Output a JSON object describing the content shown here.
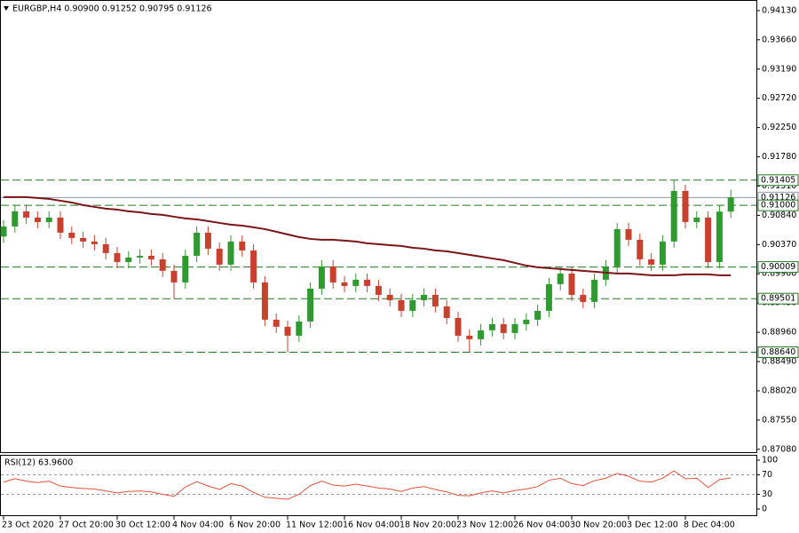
{
  "chart_data": [
    {
      "type": "candlestick",
      "title": "EURGBP,H4  0.90900 0.91252 0.90795 0.91126",
      "categories": [
        "23 Oct 2020",
        null,
        null,
        null,
        null,
        "27 Oct 20:00",
        null,
        null,
        null,
        null,
        "30 Oct 12:00",
        null,
        null,
        null,
        null,
        "4 Nov 04:00",
        null,
        null,
        null,
        null,
        "6 Nov 20:00",
        null,
        null,
        null,
        null,
        "11 Nov 12:00",
        null,
        null,
        null,
        null,
        "16 Nov 04:00",
        null,
        null,
        null,
        null,
        "18 Nov 20:00",
        null,
        null,
        null,
        null,
        "23 Nov 12:00",
        null,
        null,
        null,
        null,
        "26 Nov 04:00",
        null,
        null,
        null,
        null,
        "30 Nov 20:00",
        null,
        null,
        null,
        null,
        "3 Dec 12:00",
        null,
        null,
        null,
        null,
        "8 Dec 04:00",
        null,
        null,
        null,
        null
      ],
      "open": [
        0.905,
        0.90661,
        0.90904,
        0.90804,
        0.90732,
        0.90804,
        0.90561,
        0.90476,
        0.90419,
        0.90376,
        0.90233,
        0.9009,
        0.90162,
        0.9019,
        0.90133,
        0.89948,
        0.89762,
        0.9019,
        0.90561,
        0.90304,
        0.90048,
        0.90419,
        0.90276,
        0.89762,
        0.89163,
        0.89049,
        0.88906,
        0.89134,
        0.89662,
        0.90019,
        0.89762,
        0.89705,
        0.89805,
        0.89705,
        0.89562,
        0.89477,
        0.89305,
        0.89477,
        0.89562,
        0.89377,
        0.89191,
        0.88906,
        0.88849,
        0.88992,
        0.89091,
        0.88949,
        0.89091,
        0.89163,
        0.89305,
        0.89734,
        0.89905,
        0.89562,
        0.89448,
        0.89805,
        0.90019,
        0.90618,
        0.90447,
        0.90133,
        0.90048,
        0.90419,
        0.91232,
        0.90732,
        0.90804,
        0.9009,
        0.909
      ],
      "high": [
        0.90761,
        0.91004,
        0.91004,
        0.90904,
        0.90904,
        0.90904,
        0.90661,
        0.90576,
        0.90519,
        0.90476,
        0.90333,
        0.90262,
        0.9029,
        0.9029,
        0.90233,
        0.90048,
        0.9029,
        0.90661,
        0.90661,
        0.90404,
        0.90519,
        0.90519,
        0.90376,
        0.89862,
        0.89263,
        0.89149,
        0.89234,
        0.89762,
        0.90119,
        0.90119,
        0.89862,
        0.89905,
        0.89905,
        0.89805,
        0.89662,
        0.89577,
        0.89577,
        0.89662,
        0.89662,
        0.89477,
        0.89291,
        0.89006,
        0.89092,
        0.89191,
        0.89191,
        0.89191,
        0.89263,
        0.89405,
        0.89834,
        0.90005,
        0.90005,
        0.89662,
        0.89905,
        0.90119,
        0.90718,
        0.90718,
        0.90547,
        0.90233,
        0.90519,
        0.91405,
        0.91332,
        0.90904,
        0.90904,
        0.91,
        0.91252
      ],
      "low": [
        0.904,
        0.90561,
        0.90704,
        0.90632,
        0.90632,
        0.90461,
        0.90376,
        0.90319,
        0.90276,
        0.90133,
        0.8999,
        0.8999,
        0.90062,
        0.90033,
        0.89848,
        0.895,
        0.89662,
        0.9009,
        0.90204,
        0.89948,
        0.89948,
        0.90176,
        0.89662,
        0.89063,
        0.88949,
        0.8864,
        0.88806,
        0.89034,
        0.89562,
        0.89662,
        0.89605,
        0.89605,
        0.89605,
        0.89462,
        0.89377,
        0.89205,
        0.89205,
        0.89377,
        0.89277,
        0.89091,
        0.88806,
        0.8864,
        0.88749,
        0.88892,
        0.88849,
        0.88849,
        0.88991,
        0.89063,
        0.89205,
        0.89634,
        0.89462,
        0.89348,
        0.89348,
        0.89705,
        0.89919,
        0.90347,
        0.90033,
        0.89948,
        0.89948,
        0.90319,
        0.90632,
        0.90632,
        0.8999,
        0.8999,
        0.90795
      ],
      "close": [
        0.90661,
        0.90904,
        0.90804,
        0.90732,
        0.90804,
        0.90561,
        0.90476,
        0.90419,
        0.90376,
        0.90233,
        0.9009,
        0.90162,
        0.9019,
        0.90133,
        0.89948,
        0.89762,
        0.9019,
        0.90561,
        0.90304,
        0.90048,
        0.90419,
        0.90276,
        0.89762,
        0.89163,
        0.89049,
        0.88906,
        0.89134,
        0.89662,
        0.90019,
        0.89762,
        0.89705,
        0.89805,
        0.89705,
        0.89562,
        0.89477,
        0.89305,
        0.89477,
        0.89562,
        0.89377,
        0.89191,
        0.88906,
        0.88849,
        0.88992,
        0.89091,
        0.88949,
        0.89091,
        0.89163,
        0.89305,
        0.89734,
        0.89905,
        0.89562,
        0.89448,
        0.89805,
        0.90019,
        0.90618,
        0.90447,
        0.90133,
        0.90048,
        0.90419,
        0.91232,
        0.90732,
        0.90804,
        0.9009,
        0.909,
        0.91126
      ],
      "up_color": "#2f9a2f",
      "down_color": "#c8402e",
      "overlay": {
        "color": "#7a1518",
        "values": [
          0.91132,
          0.91132,
          0.91132,
          0.91118,
          0.91104,
          0.91075,
          0.91046,
          0.91004,
          0.90975,
          0.90947,
          0.90932,
          0.90904,
          0.90889,
          0.90861,
          0.90847,
          0.90818,
          0.9079,
          0.90775,
          0.90747,
          0.90718,
          0.9069,
          0.90675,
          0.90647,
          0.90618,
          0.90576,
          0.90533,
          0.9049,
          0.90461,
          0.90447,
          0.90447,
          0.90433,
          0.90419,
          0.9039,
          0.90376,
          0.90361,
          0.90347,
          0.90319,
          0.90304,
          0.90276,
          0.90262,
          0.90233,
          0.90205,
          0.90176,
          0.90147,
          0.90119,
          0.90076,
          0.90033,
          0.90005,
          0.8999,
          0.89976,
          0.89962,
          0.89948,
          0.89933,
          0.89919,
          0.89905,
          0.89905,
          0.89891,
          0.89876,
          0.89876,
          0.89876,
          0.89891,
          0.89891,
          0.89891,
          0.89876,
          0.89876
        ]
      },
      "levels": [
        {
          "value": 0.91405,
          "color": "#1f7a1f",
          "style": "dashed"
        },
        {
          "value": 0.91126,
          "color": "#8a97a8",
          "style": "solid"
        },
        {
          "value": 0.91,
          "label": "0.91000",
          "color": "#1f7a1f",
          "style": "dashed"
        },
        {
          "value": 0.90009,
          "color": "#1f7a1f",
          "style": "dashed"
        },
        {
          "value": 0.89501,
          "color": "#1f7a1f",
          "style": "dashed"
        },
        {
          "value": 0.8864,
          "label": "0.88640",
          "color": "#1f7a1f",
          "style": "dashed"
        }
      ],
      "ylim": [
        0.8702,
        0.943
      ],
      "yticks": [
        {
          "value": 0.9413,
          "label": "0.94130"
        },
        {
          "value": 0.9366,
          "label": "0.93660"
        },
        {
          "value": 0.9319,
          "label": "0.93190"
        },
        {
          "value": 0.9272,
          "label": "0.92720"
        },
        {
          "value": 0.9225,
          "label": "0.92250"
        },
        {
          "value": 0.9178,
          "label": "0.91780"
        },
        {
          "value": 0.9131,
          "label": "0.91310"
        },
        {
          "value": 0.9084,
          "label": "0.90840"
        },
        {
          "value": 0.9037,
          "label": "0.90370"
        },
        {
          "value": 0.899,
          "label": "0.89900"
        },
        {
          "value": 0.8943,
          "label": "0.89430"
        },
        {
          "value": 0.8896,
          "label": "0.88960"
        },
        {
          "value": 0.8849,
          "label": "0.88490"
        },
        {
          "value": 0.8802,
          "label": "0.88020"
        },
        {
          "value": 0.8755,
          "label": "0.87550"
        },
        {
          "value": 0.8708,
          "label": "0.87080"
        }
      ]
    },
    {
      "type": "line",
      "title": "RSI(12) 63.9600",
      "color": "#e0533a",
      "values": [
        55,
        62,
        57,
        54,
        57,
        47,
        44,
        42,
        41,
        37,
        33,
        36,
        37,
        35,
        30,
        26,
        45,
        56,
        47,
        40,
        52,
        47,
        34,
        24,
        22,
        20,
        30,
        48,
        57,
        49,
        47,
        51,
        47,
        43,
        41,
        36,
        43,
        46,
        40,
        35,
        28,
        27,
        33,
        37,
        33,
        38,
        41,
        46,
        59,
        63,
        52,
        48,
        58,
        63,
        73,
        67,
        57,
        55,
        63,
        78,
        62,
        63,
        44,
        60,
        63.96
      ],
      "levels": [
        70,
        30
      ],
      "ylim": [
        0,
        100
      ],
      "yticks": [
        100,
        70,
        30,
        0
      ]
    }
  ]
}
